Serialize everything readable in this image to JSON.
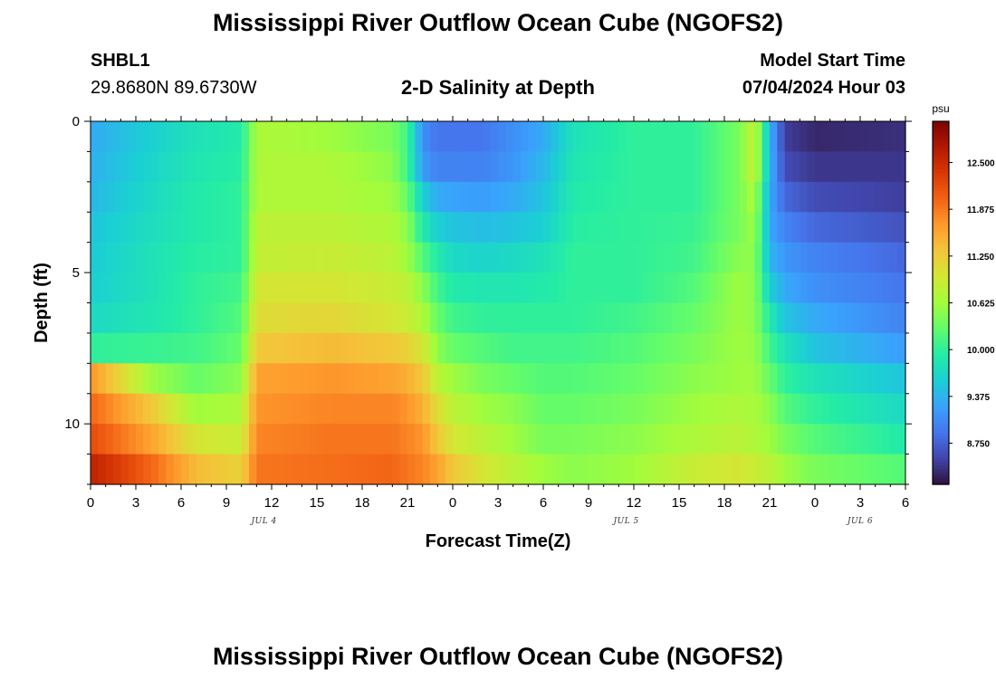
{
  "header": {
    "title": "Mississippi River Outflow Ocean Cube (NGOFS2)",
    "station_id": "SHBL1",
    "coordinates": "29.8680N  89.6730W",
    "subtitle": "2-D Salinity at Depth",
    "model_start_label": "Model Start Time",
    "model_start_value": "07/04/2024 Hour 03"
  },
  "footer": {
    "title": "Mississippi River Outflow Ocean Cube (NGOFS2)"
  },
  "chart_data": {
    "type": "heatmap",
    "title": "2-D Salinity at Depth",
    "xlabel": "Forecast Time(Z)",
    "ylabel": "Depth (ft)",
    "x_tick_labels": [
      "0",
      "3",
      "6",
      "9",
      "12",
      "15",
      "18",
      "21",
      "0",
      "3",
      "6",
      "9",
      "12",
      "15",
      "18",
      "21",
      "0",
      "3",
      "6"
    ],
    "date_labels": [
      "JUL 4",
      "JUL 5",
      "JUL 6"
    ],
    "y_tick_labels": [
      "0",
      "5",
      "10"
    ],
    "xlim_hours": [
      0,
      54
    ],
    "ylim_ft": [
      0,
      12
    ],
    "colorbar": {
      "unit": "psu",
      "tick_labels": [
        "12.500",
        "11.875",
        "11.250",
        "10.625",
        "10.000",
        "9.375",
        "8.750"
      ],
      "tick_values": [
        12.5,
        11.875,
        11.25,
        10.625,
        10.0,
        9.375,
        8.75
      ],
      "range": [
        8.2,
        13.05
      ],
      "colormap": [
        "#30123b",
        "#4145ab",
        "#4675ed",
        "#39a2fc",
        "#1bcfd4",
        "#24eca6",
        "#61fc6c",
        "#a4fc3b",
        "#d1e834",
        "#f3c63a",
        "#fe9b2d",
        "#f36315",
        "#d93806",
        "#b11901",
        "#7a0402"
      ]
    },
    "depth_levels_ft": [
      0.5,
      1.5,
      2.5,
      3.5,
      4.5,
      5.5,
      6.5,
      7.5,
      8.5,
      9.5,
      10.5,
      11.5
    ],
    "series": [
      {
        "depth_ft": 0.5,
        "x": [
          0,
          4,
          7,
          10,
          11,
          16,
          20,
          21,
          22,
          23,
          24,
          26,
          28,
          30,
          32,
          36,
          40,
          43,
          44,
          45,
          46,
          48,
          54
        ],
        "values": [
          9.3,
          9.6,
          9.8,
          9.9,
          10.7,
          10.6,
          10.4,
          10.1,
          9.1,
          8.9,
          8.9,
          8.9,
          9.1,
          9.3,
          9.8,
          10.0,
          10.0,
          10.4,
          10.9,
          9.4,
          8.5,
          8.35,
          8.4
        ]
      },
      {
        "depth_ft": 1.5,
        "x": [
          0,
          4,
          7,
          10,
          11,
          16,
          20,
          21,
          22,
          23,
          24,
          26,
          28,
          30,
          32,
          36,
          40,
          43,
          44,
          45,
          46,
          48,
          54
        ],
        "values": [
          9.35,
          9.65,
          9.85,
          9.95,
          10.7,
          10.7,
          10.5,
          10.1,
          9.2,
          9.0,
          9.0,
          9.0,
          9.15,
          9.4,
          9.85,
          10.0,
          10.0,
          10.4,
          10.9,
          9.4,
          8.6,
          8.45,
          8.45
        ]
      },
      {
        "depth_ft": 2.5,
        "x": [
          0,
          4,
          7,
          10,
          11,
          16,
          20,
          21,
          22,
          23,
          24,
          26,
          28,
          30,
          32,
          36,
          40,
          43,
          44,
          45,
          46,
          48,
          54
        ],
        "values": [
          9.4,
          9.7,
          9.9,
          10.0,
          10.7,
          10.7,
          10.6,
          10.3,
          9.6,
          9.3,
          9.25,
          9.2,
          9.3,
          9.5,
          9.9,
          10.0,
          10.0,
          10.4,
          10.7,
          9.3,
          8.8,
          8.6,
          8.5
        ]
      },
      {
        "depth_ft": 3.5,
        "x": [
          0,
          4,
          7,
          10,
          11,
          16,
          20,
          21,
          22,
          23,
          24,
          26,
          28,
          30,
          32,
          36,
          40,
          43,
          44,
          45,
          46,
          48,
          54
        ],
        "values": [
          9.5,
          9.75,
          9.9,
          10.0,
          10.8,
          10.8,
          10.7,
          10.5,
          9.9,
          9.6,
          9.5,
          9.45,
          9.5,
          9.6,
          9.95,
          10.0,
          10.05,
          10.4,
          10.6,
          9.3,
          9.0,
          8.8,
          8.65
        ]
      },
      {
        "depth_ft": 4.5,
        "x": [
          0,
          4,
          7,
          10,
          11,
          16,
          20,
          21,
          22,
          23,
          24,
          26,
          28,
          30,
          32,
          36,
          40,
          43,
          44,
          45,
          46,
          48,
          54
        ],
        "values": [
          9.55,
          9.8,
          9.95,
          10.0,
          10.85,
          10.9,
          10.8,
          10.6,
          10.2,
          9.9,
          9.7,
          9.65,
          9.7,
          9.8,
          10.0,
          10.0,
          10.1,
          10.5,
          10.5,
          9.4,
          9.15,
          9.0,
          8.8
        ]
      },
      {
        "depth_ft": 5.5,
        "x": [
          0,
          4,
          7,
          10,
          11,
          16,
          20,
          21,
          22,
          23,
          24,
          26,
          28,
          30,
          32,
          36,
          40,
          43,
          44,
          45,
          46,
          48,
          54
        ],
        "values": [
          9.6,
          9.8,
          10.0,
          10.1,
          11.0,
          11.0,
          10.9,
          10.8,
          10.5,
          10.1,
          9.9,
          9.85,
          9.85,
          9.9,
          10.0,
          10.0,
          10.2,
          10.6,
          10.5,
          9.6,
          9.3,
          9.1,
          8.9
        ]
      },
      {
        "depth_ft": 6.5,
        "x": [
          0,
          4,
          7,
          10,
          11,
          16,
          20,
          21,
          22,
          23,
          24,
          26,
          28,
          30,
          32,
          36,
          40,
          43,
          44,
          45,
          46,
          48,
          54
        ],
        "values": [
          9.7,
          9.85,
          10.0,
          10.2,
          11.1,
          11.15,
          11.0,
          10.9,
          10.7,
          10.3,
          10.1,
          10.0,
          10.0,
          10.0,
          10.0,
          10.1,
          10.3,
          10.6,
          10.5,
          9.9,
          9.5,
          9.3,
          9.0
        ]
      },
      {
        "depth_ft": 7.5,
        "x": [
          0,
          4,
          7,
          10,
          11,
          16,
          20,
          21,
          22,
          23,
          24,
          26,
          28,
          30,
          32,
          36,
          40,
          43,
          44,
          45,
          46,
          48,
          54
        ],
        "values": [
          10.0,
          10.05,
          10.1,
          10.3,
          11.3,
          11.4,
          11.3,
          11.2,
          11.0,
          10.5,
          10.3,
          10.2,
          10.1,
          10.1,
          10.1,
          10.2,
          10.4,
          10.6,
          10.55,
          10.1,
          9.8,
          9.5,
          9.2
        ]
      },
      {
        "depth_ft": 8.5,
        "x": [
          0,
          4,
          7,
          10,
          11,
          16,
          20,
          21,
          22,
          23,
          24,
          26,
          28,
          30,
          32,
          36,
          40,
          43,
          44,
          45,
          46,
          48,
          54
        ],
        "values": [
          11.7,
          10.6,
          10.3,
          10.5,
          11.6,
          11.7,
          11.6,
          11.5,
          11.3,
          10.8,
          10.6,
          10.4,
          10.3,
          10.2,
          10.2,
          10.3,
          10.5,
          10.6,
          10.6,
          10.3,
          10.0,
          9.8,
          9.5
        ]
      },
      {
        "depth_ft": 9.5,
        "x": [
          0,
          4,
          7,
          10,
          11,
          16,
          20,
          21,
          22,
          23,
          24,
          26,
          28,
          30,
          32,
          36,
          40,
          43,
          44,
          45,
          46,
          48,
          54
        ],
        "values": [
          12.0,
          11.3,
          10.6,
          10.7,
          11.7,
          11.8,
          11.8,
          11.7,
          11.5,
          11.1,
          10.8,
          10.6,
          10.5,
          10.3,
          10.3,
          10.4,
          10.6,
          10.7,
          10.65,
          10.5,
          10.2,
          10.0,
          9.7
        ]
      },
      {
        "depth_ft": 10.5,
        "x": [
          0,
          4,
          7,
          10,
          11,
          16,
          20,
          21,
          22,
          23,
          24,
          26,
          28,
          30,
          32,
          36,
          40,
          43,
          44,
          45,
          46,
          48,
          54
        ],
        "values": [
          12.2,
          11.6,
          11.0,
          10.9,
          11.8,
          11.9,
          11.9,
          11.8,
          11.7,
          11.3,
          11.0,
          10.8,
          10.6,
          10.4,
          10.4,
          10.5,
          10.7,
          10.8,
          10.7,
          10.6,
          10.4,
          10.2,
          9.9
        ]
      },
      {
        "depth_ft": 11.5,
        "x": [
          0,
          4,
          7,
          10,
          11,
          16,
          20,
          21,
          22,
          23,
          24,
          26,
          28,
          30,
          32,
          36,
          40,
          43,
          44,
          45,
          46,
          48,
          54
        ],
        "values": [
          12.6,
          12.0,
          11.4,
          11.2,
          11.9,
          11.95,
          12.0,
          11.9,
          11.8,
          11.6,
          11.3,
          11.0,
          10.8,
          10.6,
          10.5,
          10.6,
          10.9,
          11.0,
          10.9,
          10.8,
          10.6,
          10.4,
          10.2
        ]
      }
    ]
  }
}
